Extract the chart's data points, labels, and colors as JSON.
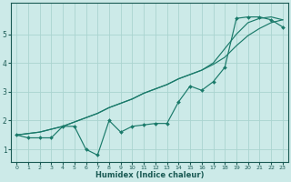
{
  "xlabel": "Humidex (Indice chaleur)",
  "background_color": "#cceae8",
  "grid_color": "#aad4d0",
  "line_color": "#1a7a6a",
  "x_values": [
    0,
    1,
    2,
    3,
    4,
    5,
    6,
    7,
    8,
    9,
    10,
    11,
    12,
    13,
    14,
    15,
    16,
    17,
    18,
    19,
    20,
    21,
    22,
    23
  ],
  "y_main": [
    1.5,
    1.4,
    1.4,
    1.4,
    1.8,
    1.8,
    1.0,
    0.8,
    2.0,
    1.6,
    1.8,
    1.85,
    1.9,
    1.9,
    2.65,
    3.2,
    3.05,
    3.35,
    3.85,
    5.55,
    5.6,
    5.6,
    5.5,
    5.25
  ],
  "y_straight1": [
    1.5,
    1.55,
    1.6,
    1.7,
    1.8,
    1.95,
    2.1,
    2.25,
    2.45,
    2.6,
    2.75,
    2.95,
    3.1,
    3.25,
    3.45,
    3.6,
    3.75,
    3.95,
    4.2,
    4.6,
    4.95,
    5.2,
    5.4,
    5.5
  ],
  "y_straight2": [
    1.5,
    1.55,
    1.6,
    1.7,
    1.8,
    1.95,
    2.1,
    2.25,
    2.45,
    2.6,
    2.75,
    2.95,
    3.1,
    3.25,
    3.45,
    3.6,
    3.75,
    4.0,
    4.5,
    5.0,
    5.4,
    5.55,
    5.6,
    5.5
  ],
  "ylim": [
    0.55,
    6.1
  ],
  "xlim": [
    -0.5,
    23.5
  ],
  "yticks": [
    1,
    2,
    3,
    4,
    5
  ],
  "xticks": [
    0,
    1,
    2,
    3,
    4,
    5,
    6,
    7,
    8,
    9,
    10,
    11,
    12,
    13,
    14,
    15,
    16,
    17,
    18,
    19,
    20,
    21,
    22,
    23
  ]
}
